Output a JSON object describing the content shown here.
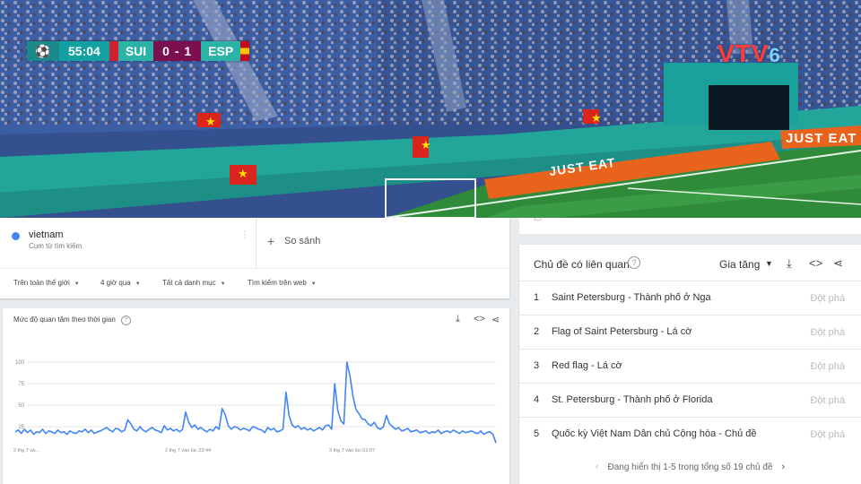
{
  "scoreboard": {
    "time": "55:04",
    "home": "SUI",
    "score": "0 - 1",
    "away": "ESP"
  },
  "broadcaster": {
    "name": "VTV",
    "channel": "6"
  },
  "ads": {
    "board": "JUST EAT"
  },
  "search_term": {
    "name": "vietnam",
    "subtitle": "Cụm từ tìm kiếm",
    "dot_color": "#4285f4",
    "compare_label": "So sánh"
  },
  "filters": [
    {
      "label": "Trên toàn thế giới"
    },
    {
      "label": "4 giờ qua"
    },
    {
      "label": "Tất cả danh mục"
    },
    {
      "label": "Tìm kiếm trên web"
    }
  ],
  "chart_panel": {
    "title": "Mức độ quan tâm theo thời gian"
  },
  "chart_data": {
    "type": "line",
    "title": "",
    "xlabel": "",
    "ylabel": "",
    "ylim": [
      0,
      100
    ],
    "yticks": [
      "100",
      "75",
      "50",
      "25"
    ],
    "xticks": [
      "2 thg 7 và...",
      "2 thg 7 vào lúc 23:44",
      "3 thg 7 vào lúc 01:07"
    ],
    "grid": true,
    "line_color": "#4285f4",
    "series": [
      {
        "values": [
          19,
          21,
          17,
          22,
          18,
          21,
          16,
          19,
          18,
          22,
          17,
          20,
          19,
          17,
          21,
          18,
          19,
          16,
          20,
          18,
          17,
          20,
          19,
          22,
          18,
          21,
          17,
          19,
          20,
          22,
          24,
          21,
          19,
          23,
          22,
          19,
          21,
          33,
          28,
          22,
          20,
          25,
          21,
          19,
          22,
          24,
          21,
          20,
          18,
          26,
          21,
          23,
          20,
          22,
          19,
          22,
          42,
          30,
          24,
          27,
          22,
          24,
          21,
          19,
          22,
          20,
          25,
          22,
          46,
          39,
          26,
          22,
          25,
          24,
          21,
          23,
          22,
          20,
          25,
          24,
          22,
          21,
          18,
          24,
          21,
          23,
          19,
          20,
          22,
          65,
          38,
          27,
          24,
          26,
          22,
          24,
          21,
          23,
          20,
          22,
          24,
          21,
          26,
          27,
          22,
          75,
          44,
          32,
          28,
          100,
          84,
          60,
          45,
          40,
          34,
          33,
          28,
          26,
          30,
          24,
          22,
          25,
          38,
          28,
          25,
          22,
          24,
          20,
          21,
          23,
          19,
          20,
          21,
          18,
          19,
          20,
          17,
          19,
          18,
          21,
          17,
          19,
          20,
          18,
          21,
          19,
          17,
          20,
          18,
          19,
          20,
          18,
          17,
          20,
          16,
          18,
          19,
          16,
          6
        ]
      }
    ]
  },
  "related": {
    "title": "Chủ đề có liên quan",
    "metric": "Gia tăng",
    "items": [
      {
        "rank": "1",
        "name": "Saint Petersburg - Thành phố ở Nga",
        "value": "Đột phá"
      },
      {
        "rank": "2",
        "name": "Flag of Saint Petersburg - Lá cờ",
        "value": "Đột phá"
      },
      {
        "rank": "3",
        "name": "Red flag - Lá cờ",
        "value": "Đột phá"
      },
      {
        "rank": "4",
        "name": "St. Petersburg - Thành phố ở Florida",
        "value": "Đột phá"
      },
      {
        "rank": "5",
        "name": "Quốc kỳ Việt Nam Dân chủ Cộng hòa - Chủ đề",
        "value": "Đột phá"
      }
    ],
    "pager": "Đang hiển thị 1-5 trong tổng số 19 chủ đề"
  }
}
